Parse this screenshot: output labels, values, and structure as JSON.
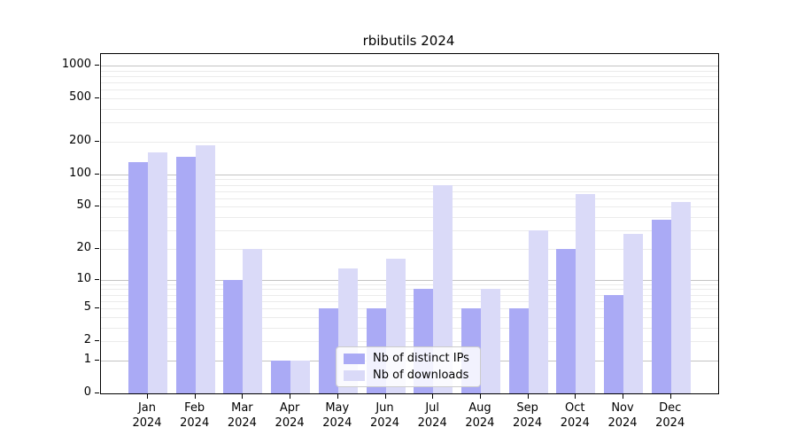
{
  "title": "rbibutils 2024",
  "legend": {
    "items": [
      {
        "label": "Nb of distinct IPs",
        "color": "#aaaaf5"
      },
      {
        "label": "Nb of downloads",
        "color": "#dadaf8"
      }
    ]
  },
  "chart_data": {
    "type": "bar",
    "title": "rbibutils 2024",
    "scale": "log1p",
    "categories": [
      "Jan\n2024",
      "Feb\n2024",
      "Mar\n2024",
      "Apr\n2024",
      "May\n2024",
      "Jun\n2024",
      "Jul\n2024",
      "Aug\n2024",
      "Sep\n2024",
      "Oct\n2024",
      "Nov\n2024",
      "Dec\n2024"
    ],
    "series": [
      {
        "name": "Nb of distinct IPs",
        "color": "#aaaaf5",
        "values": [
          130,
          145,
          10,
          1,
          5,
          5,
          8,
          5,
          5,
          20,
          7,
          38
        ]
      },
      {
        "name": "Nb of downloads",
        "color": "#dadaf8",
        "values": [
          160,
          185,
          20,
          1,
          13,
          16,
          80,
          8,
          30,
          66,
          28,
          56
        ]
      }
    ],
    "y_tick_labels": [
      "1000",
      "500",
      "200",
      "100",
      "50",
      "20",
      "10",
      "5",
      "2",
      "1",
      "0"
    ],
    "y_tick_values": [
      1000,
      500,
      200,
      100,
      50,
      20,
      10,
      5,
      2,
      1,
      0
    ],
    "ylim": [
      0,
      1280
    ],
    "grid": "on",
    "legend_position": "lower center inside"
  }
}
